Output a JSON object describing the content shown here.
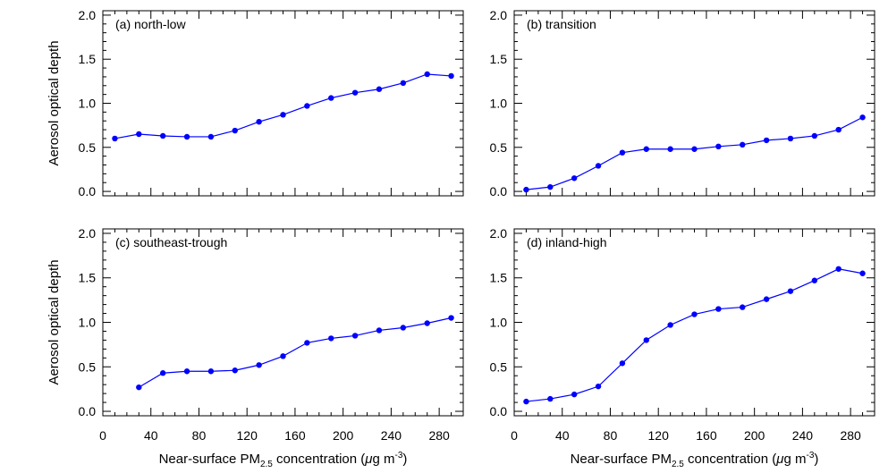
{
  "figure": {
    "ylabel": "Aerosol optical depth",
    "xlabel_prefix": "Near-surface PM",
    "xlabel_sub": "2.5",
    "xlabel_mid": " concentration (",
    "xlabel_mu": "μ",
    "xlabel_unit": "g m",
    "xlabel_sup": "-3",
    "xlabel_end": ")"
  },
  "colors": {
    "series": "#0000ff",
    "axes": "#000000"
  },
  "chart_data": [
    {
      "type": "line",
      "title": "(a) north-low",
      "x": [
        10,
        30,
        50,
        70,
        90,
        110,
        130,
        150,
        170,
        190,
        210,
        230,
        250,
        270,
        290
      ],
      "series": [
        {
          "values": [
            0.6,
            0.65,
            0.63,
            0.62,
            0.62,
            0.69,
            0.79,
            0.87,
            0.97,
            1.06,
            1.12,
            1.16,
            1.23,
            1.33,
            1.31
          ]
        }
      ],
      "xlim": [
        0,
        300
      ],
      "ylim": [
        -0.05,
        2.05
      ],
      "xticks": [
        0,
        40,
        80,
        120,
        160,
        200,
        240,
        280
      ],
      "yticks": [
        "0.0",
        "0.5",
        "1.0",
        "1.5",
        "2.0"
      ],
      "show_xticklabels": false,
      "show_ylabel": true,
      "show_xlabel": false
    },
    {
      "type": "line",
      "title": "(b) transition",
      "x": [
        10,
        30,
        50,
        70,
        90,
        110,
        130,
        150,
        170,
        190,
        210,
        230,
        250,
        270,
        290
      ],
      "series": [
        {
          "values": [
            0.02,
            0.05,
            0.15,
            0.29,
            0.44,
            0.48,
            0.48,
            0.48,
            0.51,
            0.53,
            0.58,
            0.6,
            0.63,
            0.7,
            0.84
          ]
        }
      ],
      "xlim": [
        0,
        300
      ],
      "ylim": [
        -0.05,
        2.05
      ],
      "xticks": [
        0,
        40,
        80,
        120,
        160,
        200,
        240,
        280
      ],
      "yticks": [
        "0.0",
        "0.5",
        "1.0",
        "1.5",
        "2.0"
      ],
      "show_xticklabels": false,
      "show_ylabel": false,
      "show_xlabel": false
    },
    {
      "type": "line",
      "title": "(c) southeast-trough",
      "x": [
        30,
        50,
        70,
        90,
        110,
        130,
        150,
        170,
        190,
        210,
        230,
        250,
        270,
        290
      ],
      "series": [
        {
          "values": [
            0.27,
            0.43,
            0.45,
            0.45,
            0.46,
            0.52,
            0.62,
            0.77,
            0.82,
            0.85,
            0.91,
            0.94,
            0.99,
            1.05
          ]
        }
      ],
      "xlim": [
        0,
        300
      ],
      "ylim": [
        -0.05,
        2.05
      ],
      "xticks": [
        0,
        40,
        80,
        120,
        160,
        200,
        240,
        280
      ],
      "yticks": [
        "0.0",
        "0.5",
        "1.0",
        "1.5",
        "2.0"
      ],
      "show_xticklabels": true,
      "show_ylabel": true,
      "show_xlabel": true
    },
    {
      "type": "line",
      "title": "(d) inland-high",
      "x": [
        10,
        30,
        50,
        70,
        90,
        110,
        130,
        150,
        170,
        190,
        210,
        230,
        250,
        270,
        290
      ],
      "series": [
        {
          "values": [
            0.11,
            0.14,
            0.19,
            0.28,
            0.54,
            0.8,
            0.97,
            1.09,
            1.15,
            1.17,
            1.26,
            1.35,
            1.47,
            1.6,
            1.55
          ]
        }
      ],
      "xlim": [
        0,
        300
      ],
      "ylim": [
        -0.05,
        2.05
      ],
      "xticks": [
        0,
        40,
        80,
        120,
        160,
        200,
        240,
        280
      ],
      "yticks": [
        "0.0",
        "0.5",
        "1.0",
        "1.5",
        "2.0"
      ],
      "show_xticklabels": true,
      "show_ylabel": false,
      "show_xlabel": true
    }
  ]
}
